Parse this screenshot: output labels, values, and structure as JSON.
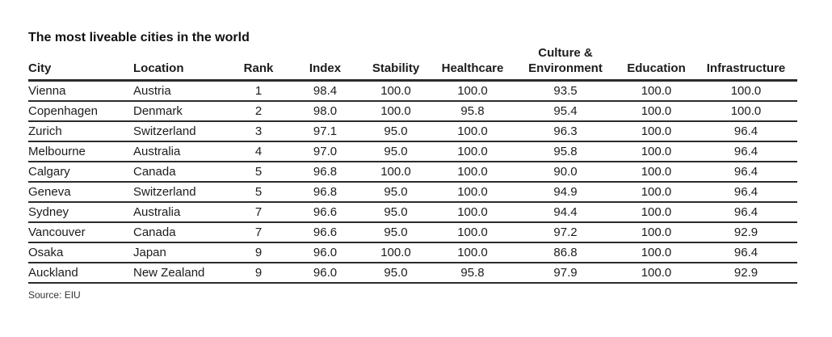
{
  "chart_data": {
    "type": "table",
    "title": "The most liveable cities in the world",
    "source_note": "Source: EIU",
    "columns": [
      {
        "key": "city",
        "label": "City"
      },
      {
        "key": "location",
        "label": "Location"
      },
      {
        "key": "rank",
        "label": "Rank"
      },
      {
        "key": "index",
        "label": "Index"
      },
      {
        "key": "stability",
        "label": "Stability"
      },
      {
        "key": "healthcare",
        "label": "Healthcare"
      },
      {
        "key": "culture-environment",
        "label": "Culture &\nEnvironment"
      },
      {
        "key": "education",
        "label": "Education"
      },
      {
        "key": "infrastructure",
        "label": "Infrastructure"
      }
    ],
    "rows": [
      [
        "Vienna",
        "Austria",
        "1",
        "98.4",
        "100.0",
        "100.0",
        "93.5",
        "100.0",
        "100.0"
      ],
      [
        "Copenhagen",
        "Denmark",
        "2",
        "98.0",
        "100.0",
        "95.8",
        "95.4",
        "100.0",
        "100.0"
      ],
      [
        "Zurich",
        "Switzerland",
        "3",
        "97.1",
        "95.0",
        "100.0",
        "96.3",
        "100.0",
        "96.4"
      ],
      [
        "Melbourne",
        "Australia",
        "4",
        "97.0",
        "95.0",
        "100.0",
        "95.8",
        "100.0",
        "96.4"
      ],
      [
        "Calgary",
        "Canada",
        "5",
        "96.8",
        "100.0",
        "100.0",
        "90.0",
        "100.0",
        "96.4"
      ],
      [
        "Geneva",
        "Switzerland",
        "5",
        "96.8",
        "95.0",
        "100.0",
        "94.9",
        "100.0",
        "96.4"
      ],
      [
        "Sydney",
        "Australia",
        "7",
        "96.6",
        "95.0",
        "100.0",
        "94.4",
        "100.0",
        "96.4"
      ],
      [
        "Vancouver",
        "Canada",
        "7",
        "96.6",
        "95.0",
        "100.0",
        "97.2",
        "100.0",
        "92.9"
      ],
      [
        "Osaka",
        "Japan",
        "9",
        "96.0",
        "100.0",
        "100.0",
        "86.8",
        "100.0",
        "96.4"
      ],
      [
        "Auckland",
        "New Zealand",
        "9",
        "96.0",
        "95.0",
        "95.8",
        "97.9",
        "100.0",
        "92.9"
      ]
    ]
  },
  "colors": {
    "background": "#ffffff",
    "text": "#1c1c1c",
    "line": "#2b2b2b"
  }
}
